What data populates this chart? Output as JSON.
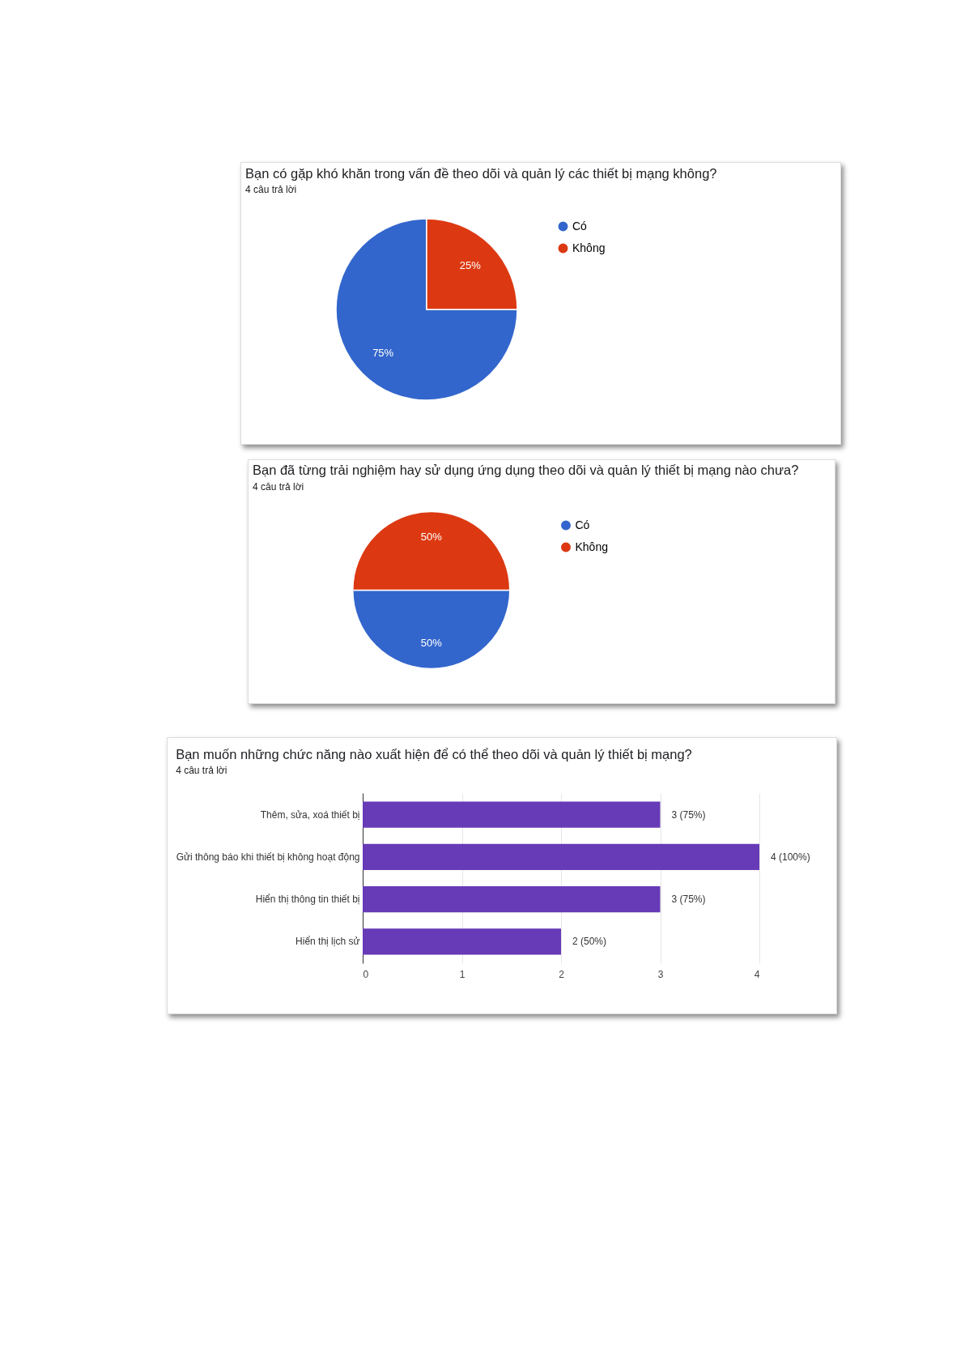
{
  "chart_data": [
    {
      "type": "pie",
      "title": "Bạn có gặp khó khăn trong vấn đề theo dõi và quản lý các thiết bị mạng không?",
      "subtitle": "4 câu trả lời",
      "categories": [
        "Có",
        "Không"
      ],
      "values": [
        75,
        25
      ],
      "colors": [
        "#3366cc",
        "#dc3912"
      ],
      "value_labels": [
        "75%",
        "25%"
      ],
      "legend": "top right"
    },
    {
      "type": "pie",
      "title": "Bạn đã từng trải nghiệm hay sử dụng ứng dụng theo dõi và quản lý thiết bị mạng nào chưa?",
      "subtitle": "4 câu trả lời",
      "categories": [
        "Có",
        "Không"
      ],
      "values": [
        50,
        50
      ],
      "colors": [
        "#3366cc",
        "#dc3912"
      ],
      "value_labels": [
        "50%",
        "50%"
      ],
      "legend": "top right"
    },
    {
      "type": "bar",
      "orientation": "horizontal",
      "title": "Bạn muốn những chức năng nào xuất hiện để có thể theo dõi và quản lý thiết bị mạng?",
      "subtitle": "4 câu trả lời",
      "categories": [
        "Thêm, sửa, xoá thiết bị",
        "Gửi thông báo khi thiết bị không hoạt động",
        "Hiển thị thông tin thiết bị",
        "Hiển thị lịch sử"
      ],
      "values": [
        3,
        4,
        3,
        2
      ],
      "color": "#673ab7",
      "value_labels": [
        "3 (75%)",
        "4 (100%)",
        "3 (75%)",
        "2 (50%)"
      ],
      "xlim": [
        0,
        4
      ],
      "xticks": [
        0,
        1,
        2,
        3,
        4
      ],
      "grid": "x"
    }
  ]
}
